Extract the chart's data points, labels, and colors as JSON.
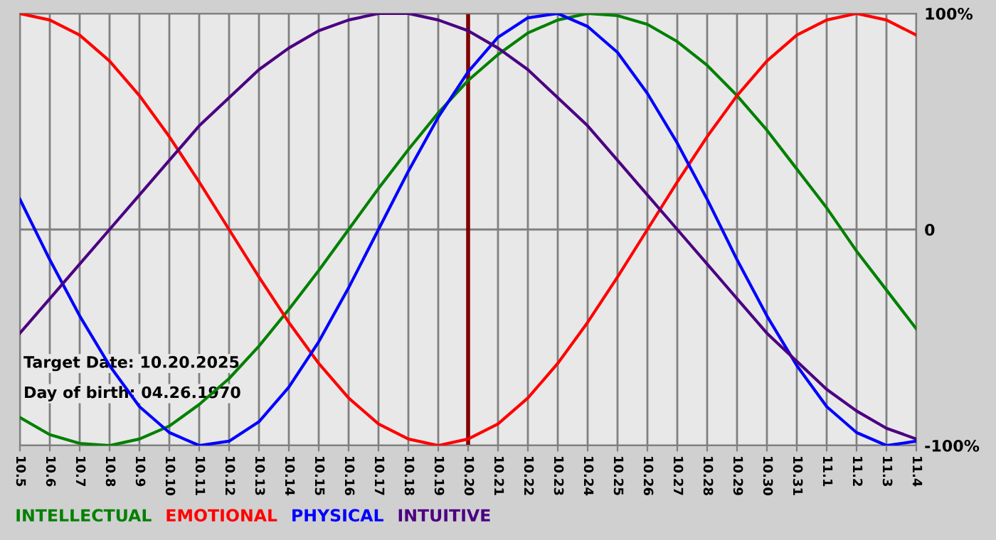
{
  "chart_data": {
    "type": "line",
    "categories": [
      "10.5",
      "10.6",
      "10.7",
      "10.8",
      "10.9",
      "10.10",
      "10.11",
      "10.12",
      "10.13",
      "10.14",
      "10.15",
      "10.16",
      "10.17",
      "10.18",
      "10.19",
      "10.20",
      "10.21",
      "10.22",
      "10.23",
      "10.24",
      "10.25",
      "10.26",
      "10.27",
      "10.28",
      "10.29",
      "10.30",
      "10.31",
      "11.1",
      "11.2",
      "11.3",
      "11.4"
    ],
    "series": [
      {
        "name": "INTELLECTUAL",
        "color": "#008000",
        "values": [
          -87,
          -95,
          -99,
          -100,
          -97,
          -91,
          -81,
          -69,
          -54,
          -37,
          -19,
          0,
          19,
          37,
          54,
          69,
          81,
          91,
          97,
          100,
          99,
          95,
          87,
          76,
          62,
          46,
          28,
          10,
          -10,
          -28,
          -46
        ]
      },
      {
        "name": "EMOTIONAL",
        "color": "#ff0000",
        "values": [
          100,
          97,
          90,
          78,
          62,
          43,
          22,
          0,
          -22,
          -43,
          -62,
          -78,
          -90,
          -97,
          -100,
          -97,
          -90,
          -78,
          -62,
          -43,
          -22,
          0,
          22,
          43,
          62,
          78,
          90,
          97,
          100,
          97,
          90
        ]
      },
      {
        "name": "PHYSICAL",
        "color": "#0000ff",
        "values": [
          14,
          -14,
          -40,
          -63,
          -82,
          -94,
          -100,
          -98,
          -89,
          -73,
          -52,
          -27,
          0,
          27,
          52,
          73,
          89,
          98,
          100,
          94,
          82,
          63,
          40,
          14,
          -14,
          -40,
          -63,
          -82,
          -94,
          -100,
          -98
        ]
      },
      {
        "name": "INTUITIVE",
        "color": "#4b0082",
        "values": [
          -48,
          -32,
          -16,
          0,
          16,
          32,
          48,
          61,
          74,
          84,
          92,
          97,
          100,
          100,
          97,
          92,
          84,
          74,
          61,
          48,
          32,
          16,
          0,
          -16,
          -32,
          -48,
          -61,
          -74,
          -84,
          -92,
          -97
        ]
      }
    ],
    "ylim": [
      -100,
      100
    ],
    "yticks": [
      {
        "value": -100,
        "label": "-100%"
      },
      0,
      {
        "value": 100,
        "label": "100%"
      }
    ],
    "grid": true,
    "legend": "bottom",
    "marker": "none",
    "line_style": "solid",
    "ref_lines": [
      {
        "axis": "x",
        "value": "10.20",
        "color": "#800000"
      }
    ],
    "annotations": [
      "Target Date: 10.20.2025",
      "Day of birth: 04.26.1970"
    ]
  }
}
